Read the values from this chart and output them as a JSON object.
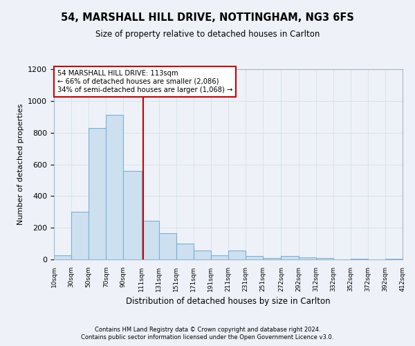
{
  "title1": "54, MARSHALL HILL DRIVE, NOTTINGHAM, NG3 6FS",
  "title2": "Size of property relative to detached houses in Carlton",
  "xlabel": "Distribution of detached houses by size in Carlton",
  "ylabel": "Number of detached properties",
  "annotation_line1": "54 MARSHALL HILL DRIVE: 113sqm",
  "annotation_line2": "← 66% of detached houses are smaller (2,086)",
  "annotation_line3": "34% of semi-detached houses are larger (1,068) →",
  "property_size": 113,
  "bin_edges": [
    10,
    30,
    50,
    70,
    90,
    111,
    131,
    151,
    171,
    191,
    211,
    231,
    251,
    272,
    292,
    312,
    332,
    352,
    372,
    392,
    412
  ],
  "bar_heights": [
    25,
    300,
    830,
    910,
    560,
    245,
    165,
    100,
    55,
    25,
    55,
    20,
    10,
    20,
    12,
    8,
    0,
    5,
    0,
    5
  ],
  "bar_color": "#cce0f0",
  "bar_edge_color": "#7ab0d4",
  "vline_color": "#cc0000",
  "annotation_box_color": "#ffffff",
  "annotation_box_edge": "#cc0000",
  "grid_color": "#d8e4ee",
  "background_color": "#eef2f8",
  "ylim": [
    0,
    1200
  ],
  "yticks": [
    0,
    200,
    400,
    600,
    800,
    1000,
    1200
  ],
  "footer1": "Contains HM Land Registry data © Crown copyright and database right 2024.",
  "footer2": "Contains public sector information licensed under the Open Government Licence v3.0."
}
